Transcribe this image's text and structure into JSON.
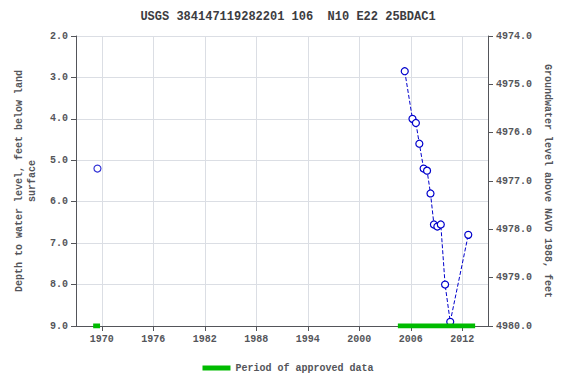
{
  "chart_data": {
    "type": "line",
    "title": "USGS 384147119282201 106  N10 E22 25BDAC1",
    "y_label": "Depth to water level, feet below land\nsurface",
    "y2_label": "Groundwater level above NAVD 1988, feet",
    "xlim": [
      1967,
      2015
    ],
    "xticks": [
      1970,
      1976,
      1982,
      1988,
      1994,
      2000,
      2006,
      2012
    ],
    "ylim": [
      9.0,
      2.0
    ],
    "yticks": [
      {
        "value": 2.0,
        "label": "2.0"
      },
      {
        "value": 3.0,
        "label": "3.0"
      },
      {
        "value": 4.0,
        "label": "4.0"
      },
      {
        "value": 5.0,
        "label": "5.0"
      },
      {
        "value": 6.0,
        "label": "6.0"
      },
      {
        "value": 7.0,
        "label": "7.0"
      },
      {
        "value": 8.0,
        "label": "8.0"
      },
      {
        "value": 9.0,
        "label": "9.0"
      }
    ],
    "y2lim": [
      4980.0,
      4974.0
    ],
    "y2ticks": [
      {
        "value": 4980.0,
        "label": "4980.0"
      },
      {
        "value": 4979.0,
        "label": "4979.0"
      },
      {
        "value": 4978.0,
        "label": "4978.0"
      },
      {
        "value": 4977.0,
        "label": "4977.0"
      },
      {
        "value": 4976.0,
        "label": "4976.0"
      },
      {
        "value": 4975.0,
        "label": "4975.0"
      },
      {
        "value": 4974.0,
        "label": "4974.0"
      }
    ],
    "grid": true,
    "legend": "bottom",
    "series": [
      {
        "type": "scatter",
        "color": "#0000cc",
        "marker": "circle",
        "x": [
          1969.5
        ],
        "values": [
          5.2
        ]
      },
      {
        "type": "line",
        "color": "#0000cc",
        "marker": "circle",
        "line_style": "dashed",
        "x": [
          2005.3,
          2006.2,
          2006.6,
          2007.0,
          2007.5,
          2007.9,
          2008.3,
          2008.7,
          2009.1,
          2009.5,
          2010.0,
          2010.6,
          2012.7
        ],
        "values": [
          2.85,
          4.0,
          4.1,
          4.6,
          5.2,
          5.25,
          5.8,
          6.55,
          6.6,
          6.55,
          8.0,
          8.9,
          6.8
        ]
      },
      {
        "name": "Period of approved data",
        "type": "segments",
        "color": "#00bb00",
        "line_style": "solid",
        "segments": [
          {
            "x_start": 1969.0,
            "x_end": 1969.8
          },
          {
            "x_start": 2004.5,
            "x_end": 2013.5
          }
        ],
        "value": 9.0
      }
    ]
  }
}
